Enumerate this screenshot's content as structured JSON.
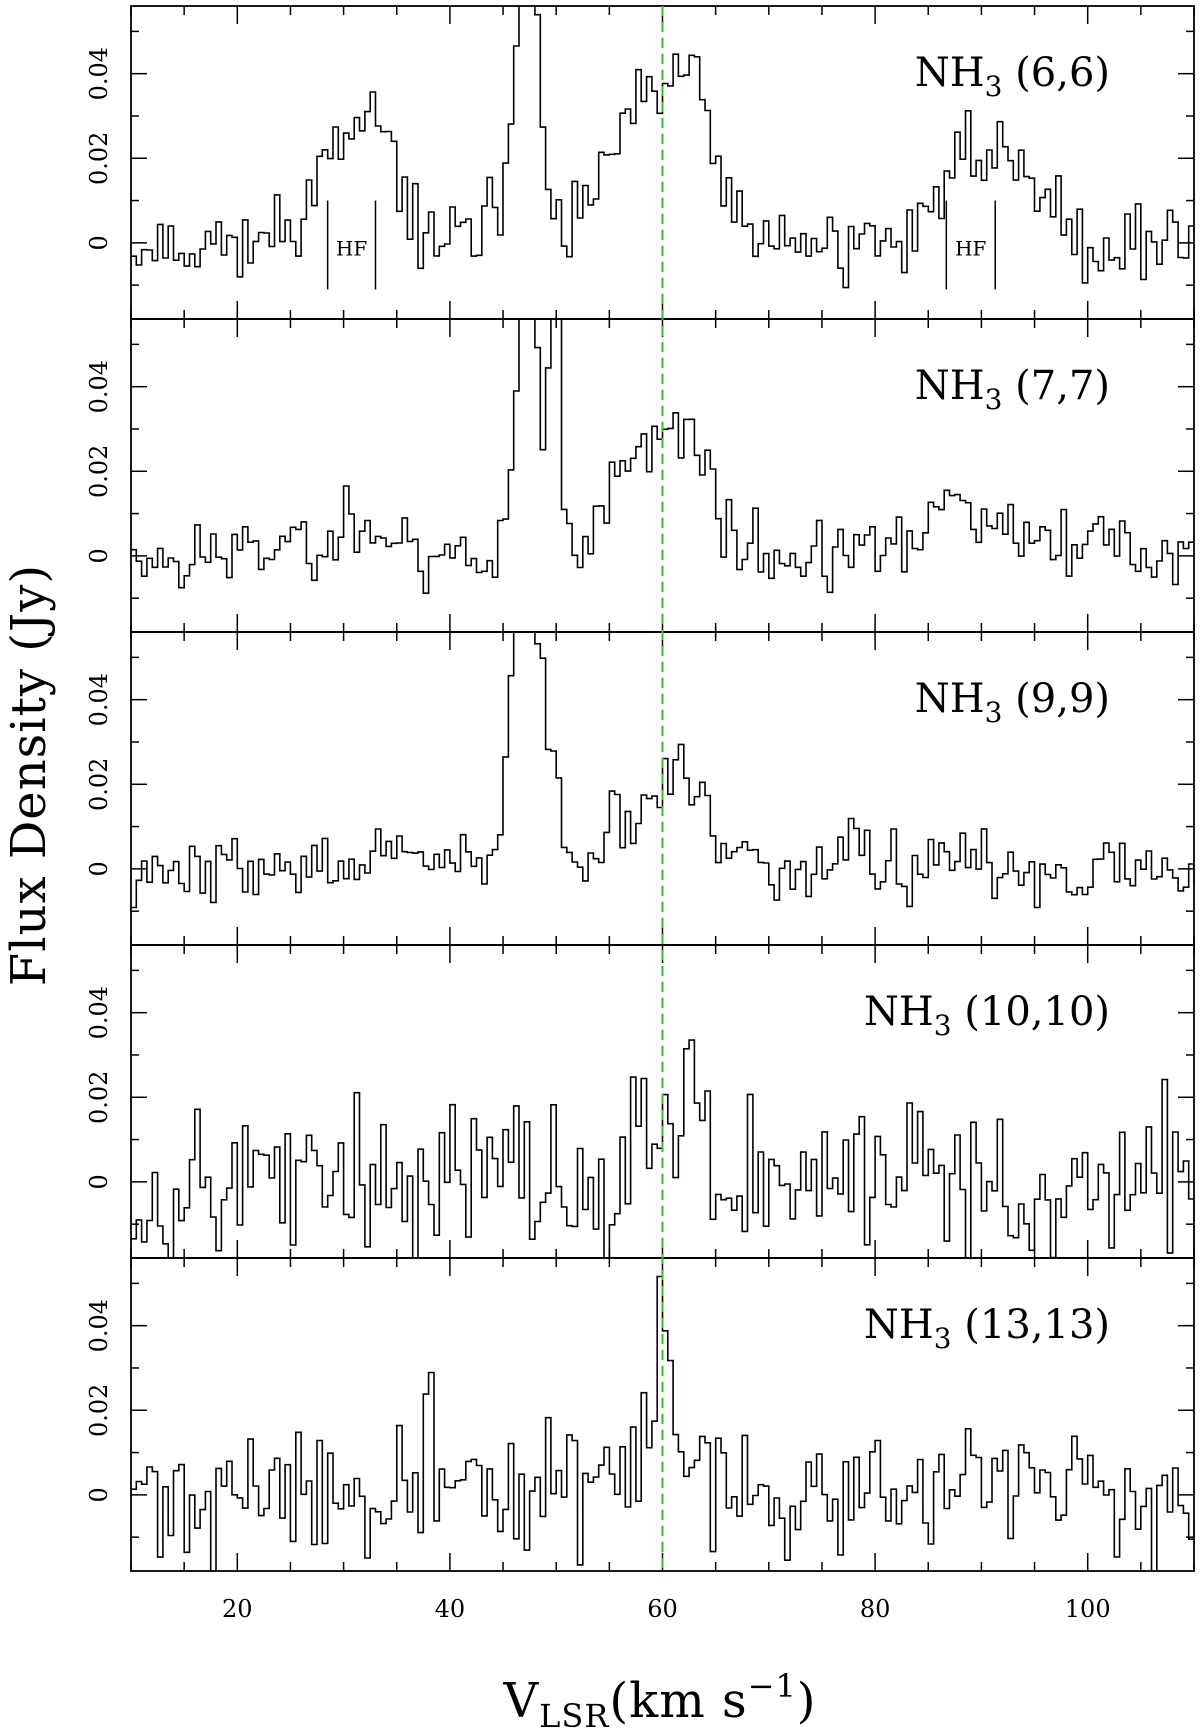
{
  "chart_data": {
    "type": "line",
    "subtype": "step spectrum, 5 stacked panels sharing x axis",
    "xlabel": "V",
    "xlabel_sub": "LSR",
    "xlabel_unit_prefix": "(km s",
    "xlabel_unit_sup": "−1",
    "xlabel_unit_suffix": ")",
    "ylabel": "Flux Density (Jy)",
    "xlim": [
      10,
      110
    ],
    "ylim": [
      -0.018,
      0.056
    ],
    "x_ticks": [
      "20",
      "40",
      "60",
      "80",
      "100"
    ],
    "x_tick_values": [
      20,
      40,
      60,
      80,
      100
    ],
    "y_ticks": [
      "0",
      "0.02",
      "0.04"
    ],
    "y_tick_values": [
      0,
      0.02,
      0.04
    ],
    "reference_line": {
      "x": 60,
      "color": "#22cc22",
      "style": "dashed"
    },
    "line_color": "#000000",
    "panels": [
      {
        "label_main": "NH",
        "label_sub": "3",
        "label_rest": " (6,6)",
        "hf_label": "HF",
        "hf_marks": [
          [
            28.5,
            33.0
          ],
          [
            86.7,
            91.3
          ]
        ],
        "features": [
          {
            "c": 30,
            "a": 0.02,
            "w": 3.0
          },
          {
            "c": 33.5,
            "a": 0.015,
            "w": 2.0
          },
          {
            "c": 47.3,
            "a": 0.09,
            "w": 0.9
          },
          {
            "c": 45.2,
            "a": 0.012,
            "w": 1.2
          },
          {
            "c": 59,
            "a": 0.032,
            "w": 3.8
          },
          {
            "c": 63,
            "a": 0.02,
            "w": 1.8
          },
          {
            "c": 88.5,
            "a": 0.017,
            "w": 3.0
          },
          {
            "c": 93.5,
            "a": 0.017,
            "w": 2.4
          }
        ],
        "noise": 0.005,
        "seed": 11
      },
      {
        "label_main": "NH",
        "label_sub": "3",
        "label_rest": " (7,7)",
        "hf_label": "",
        "hf_marks": [],
        "features": [
          {
            "c": 47.5,
            "a": 0.09,
            "w": 0.6
          },
          {
            "c": 49.8,
            "a": 0.08,
            "w": 0.5
          },
          {
            "c": 46.5,
            "a": 0.025,
            "w": 1.0
          },
          {
            "c": 59,
            "a": 0.024,
            "w": 3.8
          },
          {
            "c": 62.7,
            "a": 0.016,
            "w": 1.5
          },
          {
            "c": 30,
            "a": 0.007,
            "w": 4.0
          },
          {
            "c": 87.5,
            "a": 0.01,
            "w": 2.5
          },
          {
            "c": 92,
            "a": 0.006,
            "w": 2.5
          },
          {
            "c": 100.5,
            "a": 0.006,
            "w": 1.5
          }
        ],
        "noise": 0.005,
        "seed": 23
      },
      {
        "label_main": "NH",
        "label_sub": "3",
        "label_rest": " (9,9)",
        "hf_label": "",
        "hf_marks": [],
        "features": [
          {
            "c": 47.0,
            "a": 0.1,
            "w": 1.0
          },
          {
            "c": 49.2,
            "a": 0.03,
            "w": 0.8
          },
          {
            "c": 58.5,
            "a": 0.014,
            "w": 4.0
          },
          {
            "c": 62,
            "a": 0.01,
            "w": 2.0
          },
          {
            "c": 78,
            "a": 0.01,
            "w": 0.5
          },
          {
            "c": 35,
            "a": 0.005,
            "w": 2.0
          }
        ],
        "noise": 0.0045,
        "seed": 37
      },
      {
        "label_main": "NH",
        "label_sub": "3",
        "label_rest": " (10,10)",
        "hf_label": "",
        "hf_marks": [],
        "features": [
          {
            "c": 60,
            "a": 0.018,
            "w": 2.5
          },
          {
            "c": 63.0,
            "a": 0.03,
            "w": 0.4
          }
        ],
        "noise": 0.011,
        "seed": 53
      },
      {
        "label_main": "NH",
        "label_sub": "3",
        "label_rest": " (13,13)",
        "hf_label": "",
        "hf_marks": [],
        "features": [
          {
            "c": 60.2,
            "a": 0.032,
            "w": 0.7
          },
          {
            "c": 59,
            "a": 0.012,
            "w": 2.8
          },
          {
            "c": 38.2,
            "a": 0.035,
            "w": 0.3
          }
        ],
        "noise": 0.0085,
        "seed": 71
      }
    ]
  }
}
